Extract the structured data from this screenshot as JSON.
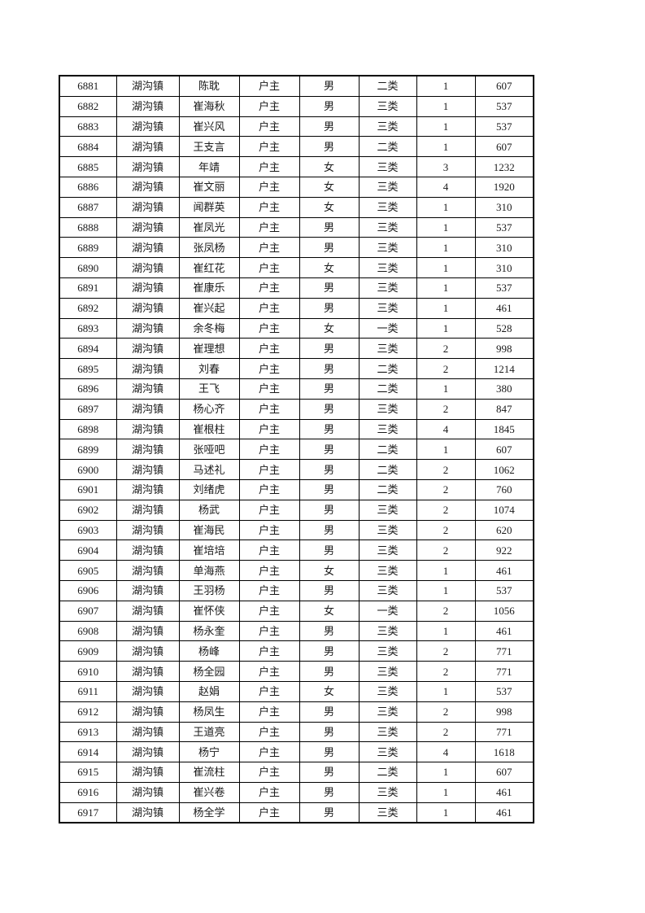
{
  "page": {
    "background_color": "#ffffff",
    "text_color": "#1a1a1a",
    "border_color": "#000000"
  },
  "table": {
    "rows": [
      [
        "6881",
        "湖沟镇",
        "陈耽",
        "户主",
        "男",
        "二类",
        "1",
        "607"
      ],
      [
        "6882",
        "湖沟镇",
        "崔海秋",
        "户主",
        "男",
        "三类",
        "1",
        "537"
      ],
      [
        "6883",
        "湖沟镇",
        "崔兴风",
        "户主",
        "男",
        "三类",
        "1",
        "537"
      ],
      [
        "6884",
        "湖沟镇",
        "王支言",
        "户主",
        "男",
        "二类",
        "1",
        "607"
      ],
      [
        "6885",
        "湖沟镇",
        "年靖",
        "户主",
        "女",
        "三类",
        "3",
        "1232"
      ],
      [
        "6886",
        "湖沟镇",
        "崔文丽",
        "户主",
        "女",
        "三类",
        "4",
        "1920"
      ],
      [
        "6887",
        "湖沟镇",
        "闻群英",
        "户主",
        "女",
        "三类",
        "1",
        "310"
      ],
      [
        "6888",
        "湖沟镇",
        "崔凤光",
        "户主",
        "男",
        "三类",
        "1",
        "537"
      ],
      [
        "6889",
        "湖沟镇",
        "张凤杨",
        "户主",
        "男",
        "三类",
        "1",
        "310"
      ],
      [
        "6890",
        "湖沟镇",
        "崔红花",
        "户主",
        "女",
        "三类",
        "1",
        "310"
      ],
      [
        "6891",
        "湖沟镇",
        "崔康乐",
        "户主",
        "男",
        "三类",
        "1",
        "537"
      ],
      [
        "6892",
        "湖沟镇",
        "崔兴起",
        "户主",
        "男",
        "三类",
        "1",
        "461"
      ],
      [
        "6893",
        "湖沟镇",
        "余冬梅",
        "户主",
        "女",
        "一类",
        "1",
        "528"
      ],
      [
        "6894",
        "湖沟镇",
        "崔理想",
        "户主",
        "男",
        "三类",
        "2",
        "998"
      ],
      [
        "6895",
        "湖沟镇",
        "刘春",
        "户主",
        "男",
        "二类",
        "2",
        "1214"
      ],
      [
        "6896",
        "湖沟镇",
        "王飞",
        "户主",
        "男",
        "二类",
        "1",
        "380"
      ],
      [
        "6897",
        "湖沟镇",
        "杨心齐",
        "户主",
        "男",
        "三类",
        "2",
        "847"
      ],
      [
        "6898",
        "湖沟镇",
        "崔根柱",
        "户主",
        "男",
        "三类",
        "4",
        "1845"
      ],
      [
        "6899",
        "湖沟镇",
        "张哑吧",
        "户主",
        "男",
        "二类",
        "1",
        "607"
      ],
      [
        "6900",
        "湖沟镇",
        "马述礼",
        "户主",
        "男",
        "二类",
        "2",
        "1062"
      ],
      [
        "6901",
        "湖沟镇",
        "刘绪虎",
        "户主",
        "男",
        "二类",
        "2",
        "760"
      ],
      [
        "6902",
        "湖沟镇",
        "杨武",
        "户主",
        "男",
        "三类",
        "2",
        "1074"
      ],
      [
        "6903",
        "湖沟镇",
        "崔海民",
        "户主",
        "男",
        "三类",
        "2",
        "620"
      ],
      [
        "6904",
        "湖沟镇",
        "崔培培",
        "户主",
        "男",
        "三类",
        "2",
        "922"
      ],
      [
        "6905",
        "湖沟镇",
        "单海燕",
        "户主",
        "女",
        "三类",
        "1",
        "461"
      ],
      [
        "6906",
        "湖沟镇",
        "王羽杨",
        "户主",
        "男",
        "三类",
        "1",
        "537"
      ],
      [
        "6907",
        "湖沟镇",
        "崔怀侠",
        "户主",
        "女",
        "一类",
        "2",
        "1056"
      ],
      [
        "6908",
        "湖沟镇",
        "杨永奎",
        "户主",
        "男",
        "三类",
        "1",
        "461"
      ],
      [
        "6909",
        "湖沟镇",
        "杨峰",
        "户主",
        "男",
        "三类",
        "2",
        "771"
      ],
      [
        "6910",
        "湖沟镇",
        "杨全园",
        "户主",
        "男",
        "三类",
        "2",
        "771"
      ],
      [
        "6911",
        "湖沟镇",
        "赵娟",
        "户主",
        "女",
        "三类",
        "1",
        "537"
      ],
      [
        "6912",
        "湖沟镇",
        "杨凤生",
        "户主",
        "男",
        "三类",
        "2",
        "998"
      ],
      [
        "6913",
        "湖沟镇",
        "王道亮",
        "户主",
        "男",
        "三类",
        "2",
        "771"
      ],
      [
        "6914",
        "湖沟镇",
        "杨宁",
        "户主",
        "男",
        "三类",
        "4",
        "1618"
      ],
      [
        "6915",
        "湖沟镇",
        "崔流柱",
        "户主",
        "男",
        "二类",
        "1",
        "607"
      ],
      [
        "6916",
        "湖沟镇",
        "崔兴卷",
        "户主",
        "男",
        "三类",
        "1",
        "461"
      ],
      [
        "6917",
        "湖沟镇",
        "杨全学",
        "户主",
        "男",
        "三类",
        "1",
        "461"
      ]
    ]
  }
}
